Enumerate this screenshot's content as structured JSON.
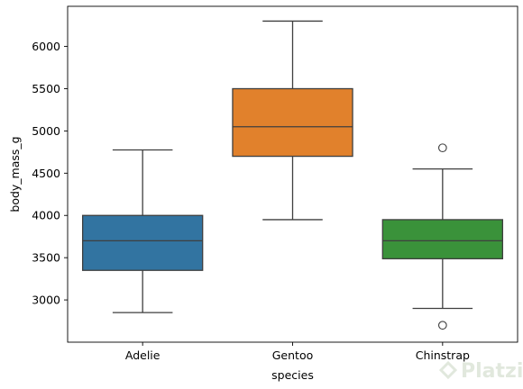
{
  "chart_data": {
    "type": "box",
    "xlabel": "species",
    "ylabel": "body_mass_g",
    "ylim": [
      2500,
      6475
    ],
    "yticks": [
      3000,
      3500,
      4000,
      4500,
      5000,
      5500,
      6000
    ],
    "grid": false,
    "categories": [
      "Adelie",
      "Gentoo",
      "Chinstrap"
    ],
    "boxes": [
      {
        "category": "Adelie",
        "color": "#3274a1",
        "whisker_low": 2850,
        "q1": 3350,
        "median": 3700,
        "q3": 4000,
        "whisker_high": 4775,
        "outliers": []
      },
      {
        "category": "Gentoo",
        "color": "#e1812c",
        "whisker_low": 3950,
        "q1": 4700,
        "median": 5050,
        "q3": 5500,
        "whisker_high": 6300,
        "outliers": []
      },
      {
        "category": "Chinstrap",
        "color": "#3a923a",
        "whisker_low": 2900,
        "q1": 3487.5,
        "median": 3700,
        "q3": 3950,
        "whisker_high": 4550,
        "outliers": [
          4800,
          2700
        ]
      }
    ]
  },
  "watermark": {
    "text": "Platzi"
  }
}
